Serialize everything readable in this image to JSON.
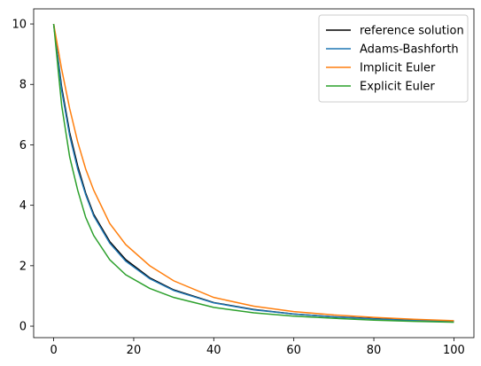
{
  "chart_data": {
    "type": "line",
    "x": [
      0,
      2,
      4,
      6,
      8,
      10,
      14,
      18,
      24,
      30,
      40,
      50,
      60,
      70,
      80,
      90,
      100
    ],
    "series": [
      {
        "name": "reference solution",
        "color": "#000000",
        "values": [
          10,
          7.9,
          6.4,
          5.3,
          4.4,
          3.7,
          2.8,
          2.2,
          1.6,
          1.2,
          0.78,
          0.55,
          0.4,
          0.31,
          0.25,
          0.2,
          0.16
        ]
      },
      {
        "name": "Adams-Bashforth",
        "color": "#1f77b4",
        "values": [
          10,
          7.8,
          6.3,
          5.2,
          4.35,
          3.65,
          2.75,
          2.15,
          1.57,
          1.18,
          0.77,
          0.54,
          0.4,
          0.31,
          0.24,
          0.19,
          0.16
        ]
      },
      {
        "name": "Implicit Euler",
        "color": "#ff7f0e",
        "values": [
          10,
          8.5,
          7.2,
          6.1,
          5.2,
          4.5,
          3.4,
          2.7,
          2.0,
          1.5,
          0.95,
          0.66,
          0.48,
          0.37,
          0.29,
          0.23,
          0.18
        ]
      },
      {
        "name": "Explicit Euler",
        "color": "#2ca02c",
        "values": [
          10,
          7.3,
          5.6,
          4.5,
          3.6,
          3.0,
          2.2,
          1.7,
          1.25,
          0.95,
          0.62,
          0.44,
          0.33,
          0.26,
          0.2,
          0.16,
          0.13
        ]
      }
    ],
    "xlim": [
      -5,
      105
    ],
    "xticks": [
      0,
      20,
      40,
      60,
      80,
      100
    ],
    "ylim": [
      -0.38,
      10.5
    ],
    "yticks": [
      0,
      2,
      4,
      6,
      8,
      10
    ],
    "legend": "upper right",
    "grid": false
  }
}
